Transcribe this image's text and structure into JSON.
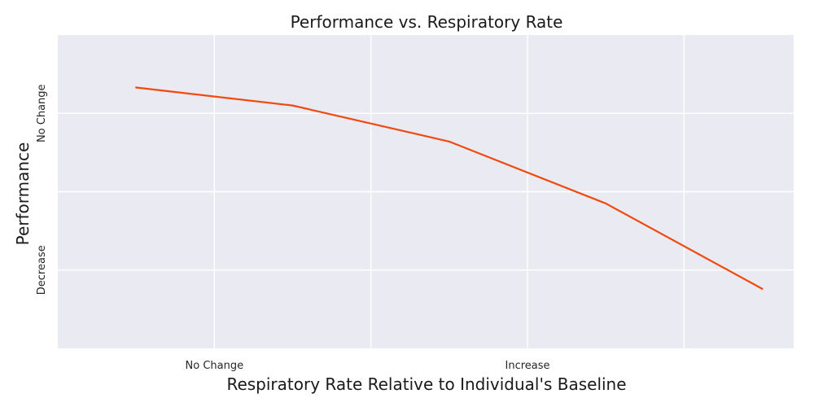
{
  "chart_data": {
    "type": "line",
    "title": "Performance vs. Respiratory Rate",
    "xlabel": "Respiratory Rate Relative to Individual's Baseline",
    "ylabel": "Performance",
    "x": [
      0.5,
      1.5,
      2.5,
      3.5,
      4.5
    ],
    "xlim": [
      0,
      4.7
    ],
    "ylim": [
      0,
      4
    ],
    "x_ticks": [
      {
        "value": 1,
        "label": "No Change"
      },
      {
        "value": 3,
        "label": "Increase"
      }
    ],
    "x_gridlines": [
      1,
      2,
      3,
      4
    ],
    "y_ticks": [
      {
        "value": 3,
        "label": "No Change"
      },
      {
        "value": 1,
        "label": "Decrease"
      }
    ],
    "y_gridlines": [
      1,
      2,
      3
    ],
    "series": [
      {
        "name": "Performance",
        "values": [
          3.33,
          3.1,
          2.64,
          1.85,
          0.76
        ]
      }
    ],
    "grid": true,
    "colors": {
      "line": "#f04a0e",
      "background": "#eaeaf2",
      "grid": "#ffffff"
    }
  }
}
